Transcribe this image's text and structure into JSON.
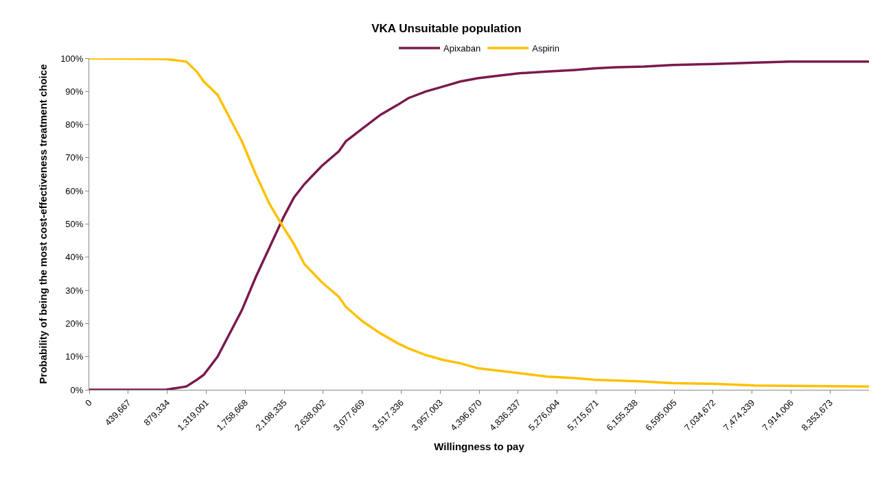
{
  "chart_data": {
    "type": "line",
    "title": "VKA Unsuitable population",
    "xlabel": "Willingness to pay",
    "ylabel": "Probability of being the most cost-effectiveness treatment choice",
    "xlim": [
      0,
      8793340
    ],
    "xticks": [
      0,
      {
        "value": 439667,
        "label": "439,667"
      },
      {
        "value": 879334,
        "label": "879,334"
      },
      {
        "value": 1319001,
        "label": "1,319,001"
      },
      {
        "value": 1758668,
        "label": "1,758,668"
      },
      {
        "value": 2198335,
        "label": "2,198,335"
      },
      {
        "value": 2638002,
        "label": "2,638,002"
      },
      {
        "value": 3077669,
        "label": "3,077,669"
      },
      {
        "value": 3517336,
        "label": "3,517,336"
      },
      {
        "value": 3957003,
        "label": "3,957,003"
      },
      {
        "value": 4396670,
        "label": "4,396,670"
      },
      {
        "value": 4836337,
        "label": "4,836,337"
      },
      {
        "value": 5276004,
        "label": "5,276,004"
      },
      {
        "value": 5715671,
        "label": "5,715,671"
      },
      {
        "value": 6155338,
        "label": "6,155,338"
      },
      {
        "value": 6595005,
        "label": "6,595,005"
      },
      {
        "value": 7034672,
        "label": "7,034,672"
      },
      {
        "value": 7474339,
        "label": "7,474,339"
      },
      {
        "value": 7914006,
        "label": "7,914,006"
      },
      {
        "value": 8353673,
        "label": "8,353,673"
      }
    ],
    "ylim": [
      0,
      100
    ],
    "yticks": [
      {
        "value": 0,
        "label": "0%"
      },
      {
        "value": 10,
        "label": "10%"
      },
      {
        "value": 20,
        "label": "20%"
      },
      {
        "value": 30,
        "label": "30%"
      },
      {
        "value": 40,
        "label": "40%"
      },
      {
        "value": 50,
        "label": "50%"
      },
      {
        "value": 60,
        "label": "60%"
      },
      {
        "value": 70,
        "label": "70%"
      },
      {
        "value": 80,
        "label": "80%"
      },
      {
        "value": 90,
        "label": "90%"
      },
      {
        "value": 100,
        "label": "100%"
      }
    ],
    "x": [
      0,
      860000,
      1095000,
      1213000,
      1291000,
      1447000,
      1604000,
      1721000,
      1878000,
      2034000,
      2190000,
      2308000,
      2425000,
      2621000,
      2816000,
      2895000,
      3090000,
      3286000,
      3481000,
      3599000,
      3794000,
      3990000,
      4185000,
      4381000,
      4537000,
      4850000,
      5163000,
      5476000,
      5711000,
      5946000,
      6259000,
      6571000,
      7041000,
      7510000,
      7901000,
      8793000
    ],
    "series": [
      {
        "name": "Apixaban",
        "color": "#7a1a4e",
        "values": [
          0,
          0,
          1,
          3,
          4.5,
          10,
          18,
          24,
          34,
          43,
          52,
          58,
          62,
          67.5,
          72,
          75,
          79,
          83,
          86,
          88,
          90,
          91.5,
          93,
          94,
          94.5,
          95.5,
          96,
          96.5,
          97,
          97.3,
          97.5,
          98,
          98.3,
          98.7,
          99,
          99
        ]
      },
      {
        "name": "Aspirin",
        "color": "#ffc000",
        "values": [
          100,
          99.8,
          99,
          96,
          93,
          89,
          81,
          75,
          65,
          56,
          49,
          44,
          38,
          32.5,
          28,
          25,
          20.5,
          17,
          14,
          12.5,
          10.5,
          9,
          8,
          6.5,
          6,
          5,
          4,
          3.5,
          3,
          2.8,
          2.5,
          2,
          1.8,
          1.3,
          1.2,
          1
        ]
      }
    ],
    "legend": "top",
    "marker": "none",
    "line_style": "solid"
  }
}
